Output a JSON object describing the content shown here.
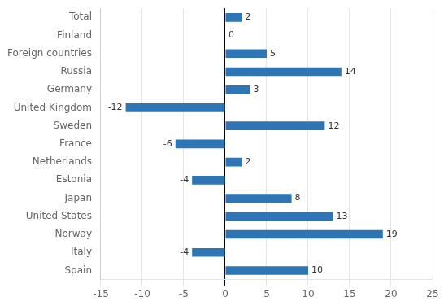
{
  "chart_data": {
    "type": "bar",
    "orientation": "horizontal",
    "categories": [
      "Spain",
      "Italy",
      "Norway",
      "United States",
      "Japan",
      "Estonia",
      "Netherlands",
      "France",
      "Sweden",
      "United Kingdom",
      "Germany",
      "Russia",
      "Foreign countries",
      "Finland",
      "Total"
    ],
    "values": [
      10,
      -4,
      19,
      13,
      8,
      -4,
      2,
      -6,
      12,
      -12,
      3,
      14,
      5,
      0,
      2
    ],
    "color": "#2E75B6",
    "xlim": [
      -15,
      25
    ],
    "xticks": [
      -15,
      -10,
      -5,
      0,
      5,
      10,
      15,
      20,
      25
    ],
    "grid": "x",
    "data_labels": true
  }
}
